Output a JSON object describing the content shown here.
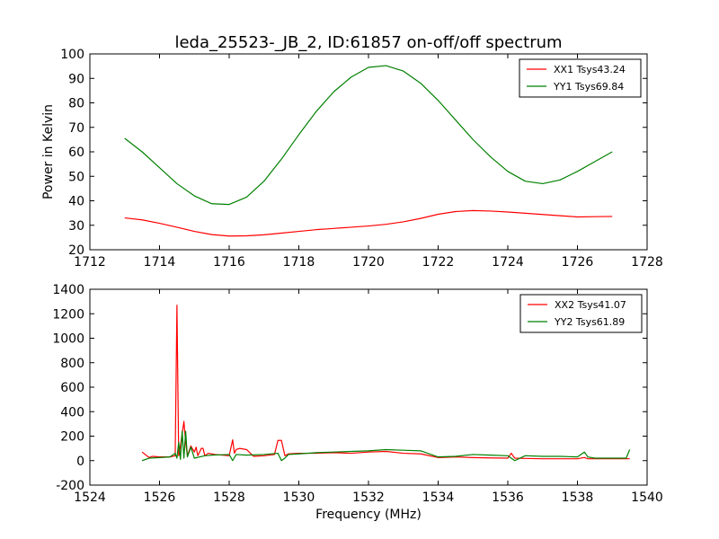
{
  "figure": {
    "title": "leda_25523-_JB_2, ID:61857 on-off/off spectrum",
    "xlabel": "Frequency (MHz)"
  },
  "chart_data": [
    {
      "type": "line",
      "title": "leda_25523-_JB_2, ID:61857 on-off/off spectrum",
      "xlabel": "",
      "ylabel": "Power in Kelvin",
      "xlim": [
        1712,
        1728
      ],
      "ylim": [
        20,
        100
      ],
      "xticks": [
        1712,
        1714,
        1716,
        1718,
        1720,
        1722,
        1724,
        1726,
        1728
      ],
      "yticks": [
        20,
        30,
        40,
        50,
        60,
        70,
        80,
        90,
        100
      ],
      "grid": false,
      "legend": "top-right",
      "series": [
        {
          "name": "XX1 Tsys43.24",
          "color": "#ff0000",
          "x": [
            1713.0,
            1713.5,
            1714.0,
            1714.5,
            1715.0,
            1715.5,
            1716.0,
            1716.5,
            1717.0,
            1717.5,
            1718.0,
            1718.5,
            1719.0,
            1719.5,
            1720.0,
            1720.5,
            1721.0,
            1721.5,
            1722.0,
            1722.5,
            1723.0,
            1723.5,
            1724.0,
            1724.5,
            1725.0,
            1725.5,
            1726.0,
            1726.5,
            1727.0
          ],
          "y": [
            33.0,
            32.2,
            30.8,
            29.2,
            27.5,
            26.2,
            25.6,
            25.7,
            26.1,
            26.8,
            27.5,
            28.2,
            28.7,
            29.2,
            29.7,
            30.4,
            31.4,
            32.8,
            34.5,
            35.6,
            36.0,
            35.8,
            35.4,
            34.9,
            34.4,
            33.9,
            33.4,
            33.5,
            33.6
          ]
        },
        {
          "name": "YY1 Tsys69.84",
          "color": "#008000",
          "x": [
            1713.0,
            1713.5,
            1714.0,
            1714.5,
            1715.0,
            1715.5,
            1716.0,
            1716.5,
            1717.0,
            1717.5,
            1718.0,
            1718.5,
            1719.0,
            1719.5,
            1720.0,
            1720.5,
            1721.0,
            1721.5,
            1722.0,
            1722.5,
            1723.0,
            1723.5,
            1724.0,
            1724.5,
            1725.0,
            1725.5,
            1726.0,
            1726.5,
            1727.0
          ],
          "y": [
            65.5,
            60.0,
            53.5,
            47.0,
            42.0,
            38.8,
            38.5,
            41.5,
            48.0,
            57.0,
            67.0,
            76.5,
            84.5,
            90.5,
            94.5,
            95.2,
            93.0,
            88.0,
            81.0,
            73.0,
            65.0,
            58.0,
            52.0,
            48.0,
            47.0,
            48.5,
            52.0,
            56.0,
            60.0
          ]
        }
      ]
    },
    {
      "type": "line",
      "title": "",
      "xlabel": "Frequency (MHz)",
      "ylabel": "",
      "xlim": [
        1524,
        1540
      ],
      "ylim": [
        -200,
        1400
      ],
      "xticks": [
        1524,
        1526,
        1528,
        1530,
        1532,
        1534,
        1536,
        1538,
        1540
      ],
      "yticks": [
        -200,
        0,
        200,
        400,
        600,
        800,
        1000,
        1200,
        1400
      ],
      "grid": false,
      "legend": "top-right",
      "series": [
        {
          "name": "XX2 Tsys41.07",
          "color": "#ff0000",
          "x": [
            1525.5,
            1525.7,
            1525.8,
            1526.0,
            1526.3,
            1526.45,
            1526.5,
            1526.55,
            1526.6,
            1526.7,
            1526.75,
            1526.8,
            1526.9,
            1527.0,
            1527.05,
            1527.1,
            1527.2,
            1527.25,
            1527.3,
            1527.4,
            1527.6,
            1528.0,
            1528.1,
            1528.15,
            1528.2,
            1528.3,
            1528.5,
            1528.7,
            1529.0,
            1529.3,
            1529.4,
            1529.5,
            1529.6,
            1529.7,
            1530.0,
            1530.5,
            1531.0,
            1531.5,
            1532.0,
            1532.5,
            1533.0,
            1533.5,
            1534.0,
            1534.5,
            1535.0,
            1535.5,
            1536.0,
            1536.1,
            1536.2,
            1536.5,
            1537.0,
            1537.5,
            1538.0,
            1538.2,
            1538.3,
            1538.5,
            1539.0,
            1539.5
          ],
          "y": [
            70,
            25,
            35,
            30,
            30,
            40,
            1270,
            40,
            120,
            320,
            150,
            40,
            120,
            70,
            110,
            40,
            100,
            100,
            40,
            60,
            50,
            40,
            170,
            60,
            90,
            100,
            90,
            35,
            40,
            50,
            165,
            165,
            40,
            55,
            60,
            60,
            65,
            60,
            70,
            75,
            60,
            55,
            25,
            30,
            25,
            22,
            20,
            60,
            20,
            18,
            15,
            15,
            15,
            25,
            15,
            15,
            15,
            15
          ]
        },
        {
          "name": "YY2 Tsys61.89",
          "color": "#008000",
          "x": [
            1525.5,
            1525.7,
            1526.0,
            1526.3,
            1526.45,
            1526.5,
            1526.55,
            1526.6,
            1526.65,
            1526.7,
            1526.75,
            1526.8,
            1526.9,
            1527.0,
            1527.3,
            1527.5,
            1528.0,
            1528.1,
            1528.2,
            1528.5,
            1529.0,
            1529.4,
            1529.5,
            1529.6,
            1529.7,
            1530.0,
            1530.5,
            1531.0,
            1531.5,
            1532.0,
            1532.5,
            1533.0,
            1533.5,
            1534.0,
            1534.5,
            1535.0,
            1535.5,
            1536.0,
            1536.2,
            1536.5,
            1537.0,
            1537.5,
            1538.0,
            1538.2,
            1538.3,
            1538.5,
            1539.0,
            1539.4,
            1539.5
          ],
          "y": [
            0,
            20,
            25,
            30,
            60,
            20,
            150,
            10,
            240,
            20,
            240,
            30,
            110,
            20,
            40,
            45,
            50,
            0,
            50,
            45,
            50,
            60,
            0,
            20,
            50,
            55,
            65,
            70,
            75,
            80,
            90,
            85,
            80,
            30,
            35,
            50,
            45,
            40,
            0,
            40,
            35,
            35,
            30,
            70,
            30,
            20,
            20,
            20,
            90
          ]
        }
      ]
    }
  ]
}
